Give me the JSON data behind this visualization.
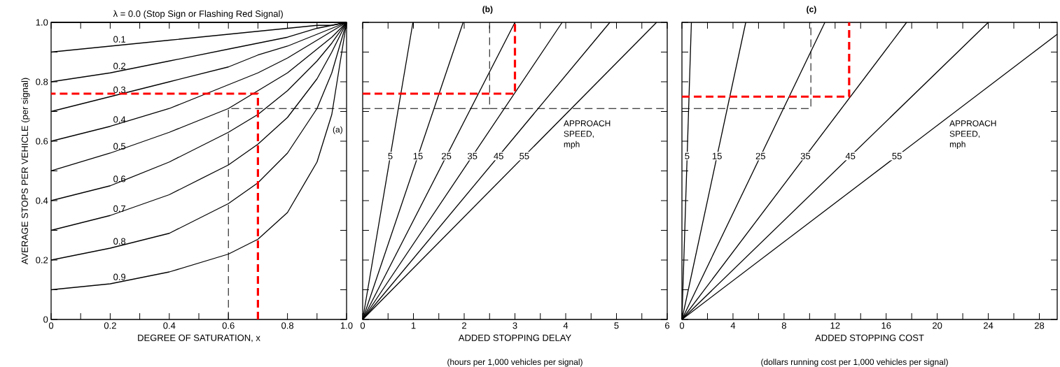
{
  "chart_data": [
    {
      "type": "line",
      "xlabel": "DEGREE OF SATURATION, x",
      "ylabel": "AVERAGE STOPS PER VEHICLE (per signal)",
      "annotations": [
        "(a)"
      ],
      "xlim": [
        0,
        1
      ],
      "ylim": [
        0,
        1
      ],
      "xticks": [
        0,
        {
          "value": 0.1,
          "label": null
        },
        0.2,
        {
          "value": 0.3,
          "label": null
        },
        0.4,
        {
          "value": 0.5,
          "label": null
        },
        0.6,
        {
          "value": 0.7,
          "label": null
        },
        0.8,
        {
          "value": 0.9,
          "label": null
        },
        {
          "value": 1,
          "label": "1.0"
        }
      ],
      "yticks": [
        0,
        {
          "value": 0.1,
          "label": null
        },
        0.2,
        {
          "value": 0.3,
          "label": null
        },
        0.4,
        {
          "value": 0.5,
          "label": null
        },
        0.6,
        {
          "value": 0.7,
          "label": null
        },
        0.8,
        {
          "value": 0.9,
          "label": null
        },
        {
          "value": 1,
          "label": "1.0"
        }
      ],
      "series": [
        {
          "name": "λ = 0.0 (Stop Sign or Flashing Red Signal)",
          "color": "#000000",
          "x": [
            0,
            1
          ],
          "values": [
            1,
            1
          ]
        },
        {
          "name": "0.1",
          "color": "#000000",
          "x": [
            0,
            0.2,
            0.4,
            0.6,
            0.7,
            0.8,
            0.9,
            0.95,
            1
          ],
          "values": [
            0.9,
            0.92,
            0.94,
            0.96,
            0.97,
            0.98,
            0.99,
            0.99,
            1
          ]
        },
        {
          "name": "0.2",
          "color": "#000000",
          "x": [
            0,
            0.2,
            0.4,
            0.6,
            0.7,
            0.8,
            0.9,
            0.95,
            1
          ],
          "values": [
            0.8,
            0.83,
            0.87,
            0.91,
            0.93,
            0.95,
            0.98,
            0.99,
            1
          ]
        },
        {
          "name": "0.3",
          "color": "#000000",
          "x": [
            0,
            0.2,
            0.4,
            0.6,
            0.7,
            0.8,
            0.9,
            0.95,
            1
          ],
          "values": [
            0.7,
            0.75,
            0.8,
            0.85,
            0.89,
            0.92,
            0.96,
            0.98,
            1
          ]
        },
        {
          "name": "0.4",
          "color": "#000000",
          "x": [
            0,
            0.2,
            0.4,
            0.6,
            0.7,
            0.8,
            0.9,
            0.95,
            1
          ],
          "values": [
            0.6,
            0.65,
            0.71,
            0.79,
            0.83,
            0.88,
            0.94,
            0.97,
            1
          ]
        },
        {
          "name": "0.5",
          "color": "#000000",
          "x": [
            0,
            0.2,
            0.4,
            0.6,
            0.7,
            0.8,
            0.9,
            0.95,
            1
          ],
          "values": [
            0.5,
            0.56,
            0.63,
            0.71,
            0.77,
            0.83,
            0.91,
            0.95,
            1
          ]
        },
        {
          "name": "0.6",
          "color": "#000000",
          "x": [
            0,
            0.2,
            0.4,
            0.6,
            0.7,
            0.8,
            0.9,
            0.95,
            1
          ],
          "values": [
            0.4,
            0.45,
            0.53,
            0.63,
            0.69,
            0.77,
            0.87,
            0.93,
            1
          ]
        },
        {
          "name": "0.7",
          "color": "#000000",
          "x": [
            0,
            0.2,
            0.4,
            0.6,
            0.7,
            0.8,
            0.9,
            0.95,
            1
          ],
          "values": [
            0.3,
            0.35,
            0.42,
            0.52,
            0.59,
            0.68,
            0.81,
            0.9,
            1
          ]
        },
        {
          "name": "0.8",
          "color": "#000000",
          "x": [
            0,
            0.2,
            0.4,
            0.6,
            0.7,
            0.8,
            0.9,
            0.95,
            1
          ],
          "values": [
            0.2,
            0.24,
            0.29,
            0.39,
            0.46,
            0.56,
            0.71,
            0.83,
            1
          ]
        },
        {
          "name": "0.9",
          "color": "#000000",
          "x": [
            0,
            0.2,
            0.4,
            0.6,
            0.7,
            0.8,
            0.9,
            0.95,
            1
          ],
          "values": [
            0.1,
            0.12,
            0.16,
            0.22,
            0.27,
            0.36,
            0.53,
            0.69,
            1
          ]
        },
        {
          "color": "#000000",
          "line_style": "dashed",
          "x": [
            0.6,
            0.6,
            1
          ],
          "values": [
            0,
            0.71,
            0.71
          ]
        },
        {
          "color": "#ff0000",
          "line_style": "dashed",
          "x": [
            0.7,
            0.7,
            0
          ],
          "values": [
            0,
            0.76,
            0.76
          ]
        }
      ]
    },
    {
      "type": "line",
      "title": "(b)",
      "xlabel": "ADDED STOPPING DELAY",
      "annotations": [
        "APPROACH SPEED, mph",
        "(hours per 1,000 vehicles per signal)"
      ],
      "xlim": [
        0,
        6
      ],
      "ylim": [
        0,
        1
      ],
      "tick_labels": "x",
      "xticks": [
        0,
        {
          "value": 0.5,
          "label": null
        },
        1,
        {
          "value": 1.5,
          "label": null
        },
        2,
        {
          "value": 2.5,
          "label": null
        },
        3,
        {
          "value": 3.5,
          "label": null
        },
        4,
        {
          "value": 4.5,
          "label": null
        },
        5,
        {
          "value": 5.5,
          "label": null
        },
        6
      ],
      "yticks": [
        0,
        0.1,
        0.2,
        0.3,
        0.4,
        0.5,
        0.6,
        0.7,
        0.8,
        0.9,
        1
      ],
      "series": [
        {
          "name": "5",
          "color": "#000000",
          "x": [
            0,
            0.99
          ],
          "values": [
            0,
            1
          ]
        },
        {
          "name": "15",
          "color": "#000000",
          "x": [
            0,
            1.98
          ],
          "values": [
            0,
            1
          ]
        },
        {
          "name": "25",
          "color": "#000000",
          "x": [
            0,
            3.0
          ],
          "values": [
            0,
            1
          ]
        },
        {
          "name": "35",
          "color": "#000000",
          "x": [
            0,
            3.93
          ],
          "values": [
            0,
            1
          ]
        },
        {
          "name": "45",
          "color": "#000000",
          "x": [
            0,
            4.87
          ],
          "values": [
            0,
            1
          ]
        },
        {
          "name": "55",
          "color": "#000000",
          "x": [
            0,
            5.79
          ],
          "values": [
            0,
            1
          ]
        },
        {
          "color": "#000000",
          "line_style": "dashed",
          "x": [
            0,
            2.5,
            2.5
          ],
          "values": [
            0.71,
            0.71,
            1
          ]
        },
        {
          "color": "#000000",
          "line_style": "dashed",
          "x": [
            2.5,
            6
          ],
          "values": [
            0.71,
            0.71
          ]
        },
        {
          "color": "#ff0000",
          "line_style": "dashed",
          "x": [
            0,
            3.0,
            3.0
          ],
          "values": [
            0.76,
            0.76,
            1
          ]
        }
      ]
    },
    {
      "type": "line",
      "title": "(c)",
      "xlabel": "ADDED STOPPING COST",
      "annotations": [
        "APPROACH SPEED, mph",
        "(dollars running cost per 1,000 vehicles per signal)"
      ],
      "xlim": [
        0,
        29.4
      ],
      "ylim": [
        0,
        1
      ],
      "tick_labels": "x",
      "xticks": [
        0,
        {
          "value": 2,
          "label": null
        },
        4,
        {
          "value": 6,
          "label": null
        },
        8,
        {
          "value": 10,
          "label": null
        },
        12,
        {
          "value": 14,
          "label": null
        },
        16,
        {
          "value": 18,
          "label": null
        },
        20,
        {
          "value": 22,
          "label": null
        },
        24,
        {
          "value": 26,
          "label": null
        },
        28
      ],
      "yticks": [
        0,
        0.1,
        0.2,
        0.3,
        0.4,
        0.5,
        0.6,
        0.7,
        0.8,
        0.9,
        1
      ],
      "series": [
        {
          "name": "5",
          "color": "#000000",
          "x": [
            0,
            0.74
          ],
          "values": [
            0,
            1
          ]
        },
        {
          "name": "15",
          "color": "#000000",
          "x": [
            0,
            5.0
          ],
          "values": [
            0,
            1
          ]
        },
        {
          "name": "25",
          "color": "#000000",
          "x": [
            0,
            11.2
          ],
          "values": [
            0,
            1
          ]
        },
        {
          "name": "35",
          "color": "#000000",
          "x": [
            0,
            17.6
          ],
          "values": [
            0,
            1
          ]
        },
        {
          "name": "45",
          "color": "#000000",
          "x": [
            0,
            24.0
          ],
          "values": [
            0,
            1
          ]
        },
        {
          "name": "55",
          "color": "#000000",
          "x": [
            0,
            29.4
          ],
          "values": [
            0,
            0.96
          ]
        },
        {
          "color": "#000000",
          "line_style": "dashed",
          "x": [
            0,
            10.1,
            10.1
          ],
          "values": [
            0.71,
            0.71,
            1
          ]
        },
        {
          "color": "#ff0000",
          "line_style": "dashed",
          "x": [
            0,
            13.1,
            13.1
          ],
          "values": [
            0.75,
            0.75,
            1
          ]
        }
      ]
    }
  ]
}
